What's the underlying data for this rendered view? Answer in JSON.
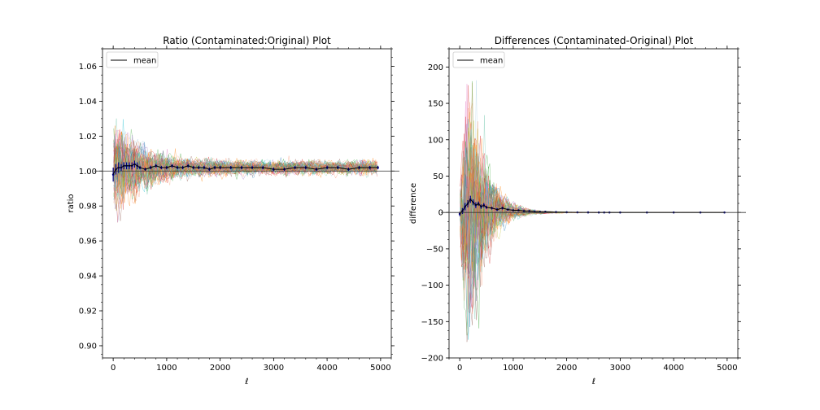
{
  "figure": {
    "background": "#ffffff"
  },
  "chart_data": [
    {
      "type": "line",
      "title": "Ratio (Contaminated:Original) Plot",
      "xlabel": "ℓ",
      "ylabel": "ratio",
      "xlim": [
        -200,
        5200
      ],
      "ylim": [
        0.893,
        1.07
      ],
      "xticks": [
        0,
        1000,
        2000,
        3000,
        4000,
        5000
      ],
      "xtick_labels": [
        "0",
        "1000",
        "2000",
        "3000",
        "4000",
        "5000"
      ],
      "yticks": [
        0.9,
        0.92,
        0.94,
        0.96,
        0.98,
        1.0,
        1.02,
        1.04,
        1.06
      ],
      "ytick_labels": [
        "0.90",
        "0.92",
        "0.94",
        "0.96",
        "0.98",
        "1.00",
        "1.02",
        "1.04",
        "1.06"
      ],
      "reference_line": 1.0,
      "grid": false,
      "legend": {
        "entries": [
          "mean"
        ],
        "placement": "upper left"
      },
      "mean_series": {
        "name": "mean",
        "color": "#000000",
        "errorbar_color": "#00008b",
        "x": [
          0,
          50,
          100,
          150,
          200,
          250,
          300,
          350,
          400,
          450,
          500,
          600,
          700,
          800,
          900,
          1000,
          1100,
          1200,
          1300,
          1400,
          1500,
          1600,
          1700,
          1800,
          1900,
          2000,
          2200,
          2400,
          2600,
          2800,
          3000,
          3200,
          3400,
          3600,
          3800,
          4000,
          4200,
          4400,
          4600,
          4800,
          4950
        ],
        "y": [
          0.998,
          1.001,
          1.002,
          1.002,
          1.003,
          1.003,
          1.003,
          1.003,
          1.004,
          1.003,
          1.002,
          1.001,
          1.002,
          1.003,
          1.002,
          1.002,
          1.003,
          1.002,
          1.002,
          1.003,
          1.002,
          1.002,
          1.002,
          1.001,
          1.002,
          1.002,
          1.002,
          1.002,
          1.002,
          1.002,
          1.001,
          1.001,
          1.002,
          1.002,
          1.001,
          1.002,
          1.002,
          1.001,
          1.002,
          1.002,
          1.002
        ],
        "err": [
          0.004,
          0.003,
          0.003,
          0.002,
          0.002,
          0.002,
          0.002,
          0.002,
          0.002,
          0.002,
          0.001,
          0.001,
          0.001,
          0.001,
          0.001,
          0.001,
          0.001,
          0.001,
          0.001,
          0.001,
          0.001,
          0.001,
          0.001,
          0.001,
          0.001,
          0.001,
          0.001,
          0.001,
          0.001,
          0.001,
          0.001,
          0.001,
          0.001,
          0.001,
          0.001,
          0.001,
          0.001,
          0.001,
          0.001,
          0.001,
          0.001
        ]
      },
      "realizations": {
        "count": 60,
        "baseline": 1.002,
        "spread_at_low_ell": 0.03,
        "spread_at_high_ell": 0.004,
        "x_start": 10,
        "x_end": 4950
      }
    },
    {
      "type": "line",
      "title": "Differences (Contaminated-Original) Plot",
      "xlabel": "ℓ",
      "ylabel": "difference",
      "xlim": [
        -200,
        5200
      ],
      "ylim": [
        -200,
        225
      ],
      "xticks": [
        0,
        1000,
        2000,
        3000,
        4000,
        5000
      ],
      "xtick_labels": [
        "0",
        "1000",
        "2000",
        "3000",
        "4000",
        "5000"
      ],
      "yticks": [
        -200,
        -150,
        -100,
        -50,
        0,
        50,
        100,
        150,
        200
      ],
      "ytick_labels": [
        "−200",
        "−150",
        "−100",
        "−50",
        "0",
        "50",
        "100",
        "150",
        "200"
      ],
      "reference_line": 0,
      "grid": false,
      "legend": {
        "entries": [
          "mean"
        ],
        "placement": "upper left"
      },
      "mean_series": {
        "name": "mean",
        "color": "#000000",
        "errorbar_color": "#00008b",
        "x": [
          0,
          50,
          100,
          150,
          200,
          250,
          300,
          350,
          400,
          450,
          500,
          600,
          700,
          800,
          900,
          1000,
          1100,
          1200,
          1300,
          1400,
          1500,
          1600,
          1800,
          2000,
          2200,
          2400,
          2600,
          2700,
          2800,
          3000,
          3500,
          4000,
          4500,
          4950
        ],
        "y": [
          -2,
          2,
          8,
          12,
          18,
          14,
          10,
          12,
          8,
          10,
          7,
          6,
          4,
          6,
          4,
          3,
          3,
          2,
          2,
          1,
          1,
          1,
          0.5,
          0.3,
          0.2,
          0.1,
          0,
          0,
          0,
          0,
          0,
          0,
          0,
          0
        ],
        "err": [
          3,
          4,
          5,
          5,
          5,
          4,
          4,
          3,
          3,
          3,
          2,
          2,
          2,
          2,
          1,
          1,
          1,
          1,
          1,
          1,
          1,
          1,
          0.5,
          0.5,
          0.3,
          0.3,
          0.5,
          0.5,
          0.2,
          0.1,
          0.1,
          0.1,
          0.1,
          0.1
        ]
      },
      "realizations": {
        "count": 60,
        "peak_ell": 180,
        "peak_amplitude": 180,
        "x_start": 10,
        "x_end": 4950
      }
    }
  ],
  "palette": [
    "#1f77b4",
    "#ff7f0e",
    "#2ca02c",
    "#d62728",
    "#9467bd",
    "#8c564b",
    "#e377c2",
    "#17becf",
    "#bcbd22",
    "#f4a582",
    "#66c2a5",
    "#fc8d62",
    "#e41a1c",
    "#4daf4a",
    "#ff7f00",
    "#a6cee3"
  ]
}
